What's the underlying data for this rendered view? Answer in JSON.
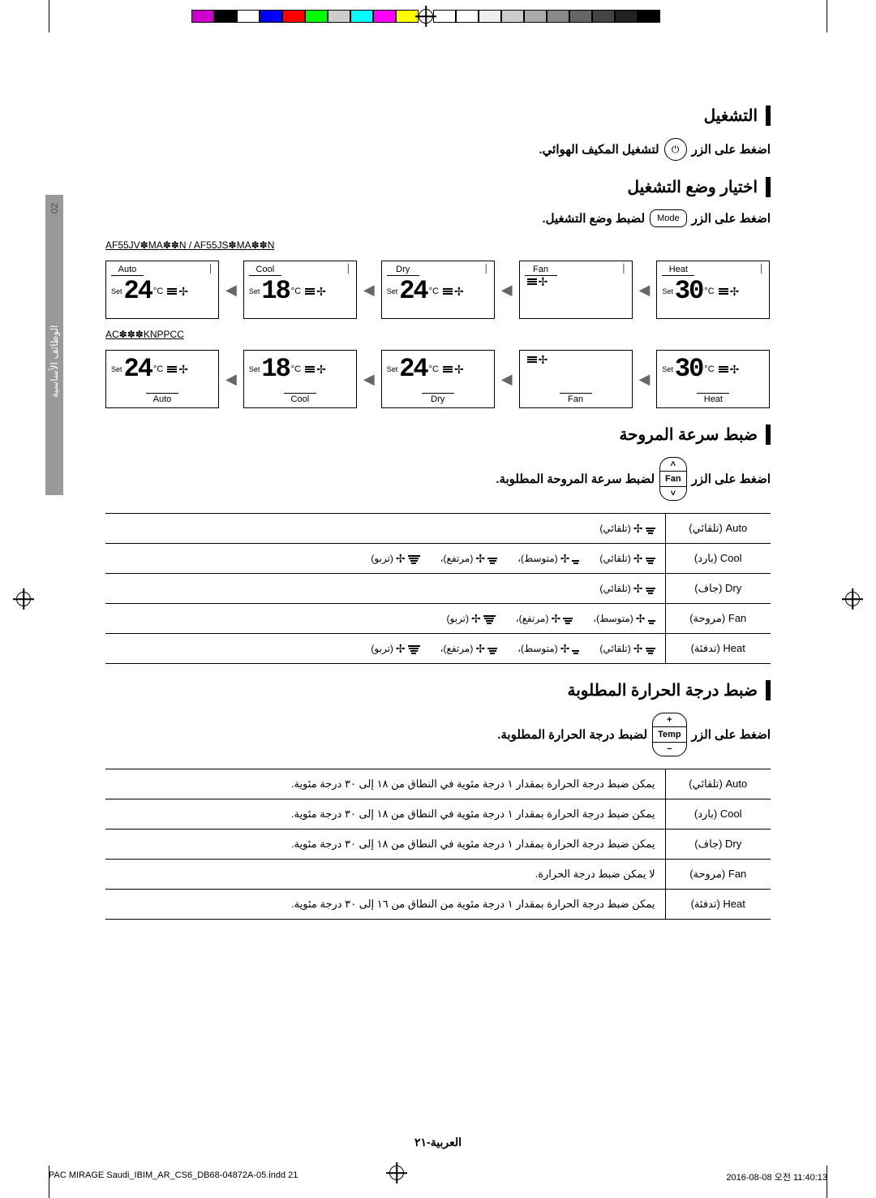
{
  "colorbar": {
    "bw": [
      "#000000",
      "#222222",
      "#444444",
      "#666666",
      "#888888",
      "#aaaaaa",
      "#cccccc",
      "#eeeeee",
      "#ffffff",
      "#ffffff"
    ],
    "colors": [
      "#ffff00",
      "#ff00ff",
      "#00ffff",
      "#cccccc",
      "#00ff00",
      "#ff0000",
      "#0000ff",
      "#ffffff",
      "#000000",
      "#cc00cc"
    ]
  },
  "sideTab": {
    "pageNum": "02",
    "label": "الوظائف الأساسية"
  },
  "sections": {
    "power": {
      "title": "التشغيل",
      "instruction_before": "اضغط على الزر",
      "instruction_after": "لتشغيل المكيف الهوائي."
    },
    "mode": {
      "title": "اختيار وضع التشغيل",
      "instruction_before": "اضغط على الزر",
      "button": "Mode",
      "instruction_after": "لضبط وضع التشغيل."
    },
    "fan": {
      "title": "ضبط سرعة المروحة",
      "instruction_before": "اضغط على الزر",
      "button": "Fan",
      "instruction_after": "لضبط سرعة المروحة المطلوبة."
    },
    "temp": {
      "title": "ضبط درجة الحرارة المطلوبة",
      "instruction_before": "اضغط على الزر",
      "button": "Temp",
      "instruction_after": "لضبط درجة الحرارة المطلوبة."
    }
  },
  "models": {
    "top": "AF55JV✽MA✽✽N / AF55JS✽MA✽✽N",
    "bottom": "AC✽✽✽KNPPCC"
  },
  "displays": {
    "row1": [
      {
        "mode": "Auto",
        "set": "Set",
        "temp": "24",
        "unit": "°C"
      },
      {
        "mode": "Cool",
        "set": "Set",
        "temp": "18",
        "unit": "°C"
      },
      {
        "mode": "Dry",
        "set": "Set",
        "temp": "24",
        "unit": "°C"
      },
      {
        "mode": "Fan",
        "set": "",
        "temp": "",
        "unit": ""
      },
      {
        "mode": "Heat",
        "set": "Set",
        "temp": "30",
        "unit": "°C"
      }
    ],
    "row2": [
      {
        "mode": "Auto",
        "set": "Set",
        "temp": "24",
        "unit": "°C"
      },
      {
        "mode": "Cool",
        "set": "Set",
        "temp": "18",
        "unit": "°C"
      },
      {
        "mode": "Dry",
        "set": "Set",
        "temp": "24",
        "unit": "°C"
      },
      {
        "mode": "Fan",
        "set": "",
        "temp": "",
        "unit": ""
      },
      {
        "mode": "Heat",
        "set": "Set",
        "temp": "30",
        "unit": "°C"
      }
    ]
  },
  "fanTable": {
    "rows": [
      {
        "mode": "Auto (تلقائي)",
        "speeds": [
          {
            "label": "(تلقائي)",
            "bars": 3
          }
        ]
      },
      {
        "mode": "Cool (بارد)",
        "speeds": [
          {
            "label": "(تلقائي)",
            "bars": 3
          },
          {
            "label": "(متوسط)،",
            "bars": 2
          },
          {
            "label": "(مرتفع)،",
            "bars": 3
          },
          {
            "label": "(تربو)",
            "bars": 4
          }
        ]
      },
      {
        "mode": "Dry (جاف)",
        "speeds": [
          {
            "label": "(تلقائي)",
            "bars": 3
          }
        ]
      },
      {
        "mode": "Fan (مروحة)",
        "speeds": [
          {
            "label": "(متوسط)،",
            "bars": 2
          },
          {
            "label": "(مرتفع)،",
            "bars": 3
          },
          {
            "label": "(تربو)",
            "bars": 4
          }
        ]
      },
      {
        "mode": "Heat (تدفئة)",
        "speeds": [
          {
            "label": "(تلقائي)",
            "bars": 3
          },
          {
            "label": "(متوسط)،",
            "bars": 2
          },
          {
            "label": "(مرتفع)،",
            "bars": 3
          },
          {
            "label": "(تربو)",
            "bars": 4
          }
        ]
      }
    ]
  },
  "tempTable": {
    "rows": [
      {
        "mode": "Auto (تلقائي)",
        "text": "يمكن ضبط درجة الحرارة بمقدار ١ درجة مئوية في النطاق من ١٨ إلى ٣٠ درجة مئوية."
      },
      {
        "mode": "Cool (بارد)",
        "text": "يمكن ضبط درجة الحرارة بمقدار ١ درجة مئوية في النطاق من ١٨ إلى ٣٠ درجة مئوية."
      },
      {
        "mode": "Dry (جاف)",
        "text": "يمكن ضبط درجة الحرارة بمقدار ١ درجة مئوية في النطاق من ١٨ إلى ٣٠ درجة مئوية."
      },
      {
        "mode": "Fan (مروحة)",
        "text": "لا يمكن ضبط درجة الحرارة."
      },
      {
        "mode": "Heat (تدفئة)",
        "text": "يمكن ضبط درجة الحرارة بمقدار ١ درجة مئوية من النطاق من ١٦ إلى ٣٠ درجة مئوية."
      }
    ]
  },
  "footer": {
    "pageLabel": "العربية-٢١",
    "docPath": "PAC MIRAGE Saudi_IBIM_AR_CS6_DB68-04872A-05.indd   21",
    "timestamp": "2016-08-08   오전 11:40:13"
  },
  "tempBtn": {
    "up": "+",
    "mid": "Temp",
    "down": "−"
  },
  "fanBtn": {
    "up": "˄",
    "mid": "Fan",
    "down": "˅"
  }
}
